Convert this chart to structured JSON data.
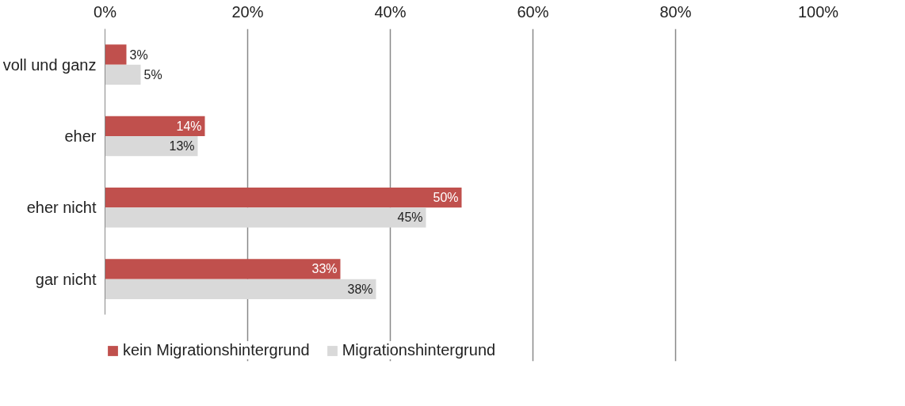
{
  "chart_data": {
    "type": "bar",
    "orientation": "horizontal",
    "categories": [
      "voll und ganz",
      "eher",
      "eher nicht",
      "gar nicht"
    ],
    "series": [
      {
        "name": "kein Migrationshintergrund",
        "color": "#c0504d",
        "values": [
          3,
          14,
          50,
          33
        ],
        "value_labels": [
          "3%",
          "14%",
          "50%",
          "33%"
        ]
      },
      {
        "name": "Migrationshintergrund",
        "color": "#d9d9d9",
        "values": [
          5,
          13,
          45,
          38
        ],
        "value_labels": [
          "5%",
          "13%",
          "45%",
          "38%"
        ]
      }
    ],
    "xlim": [
      0,
      100
    ],
    "xticks": [
      {
        "value": 0,
        "label": "0%"
      },
      {
        "value": 20,
        "label": "20%"
      },
      {
        "value": 40,
        "label": "40%"
      },
      {
        "value": 60,
        "label": "60%"
      },
      {
        "value": 80,
        "label": "80%"
      },
      {
        "value": 100,
        "label": "100%"
      }
    ],
    "grid": "x",
    "legend": "bottom left"
  }
}
